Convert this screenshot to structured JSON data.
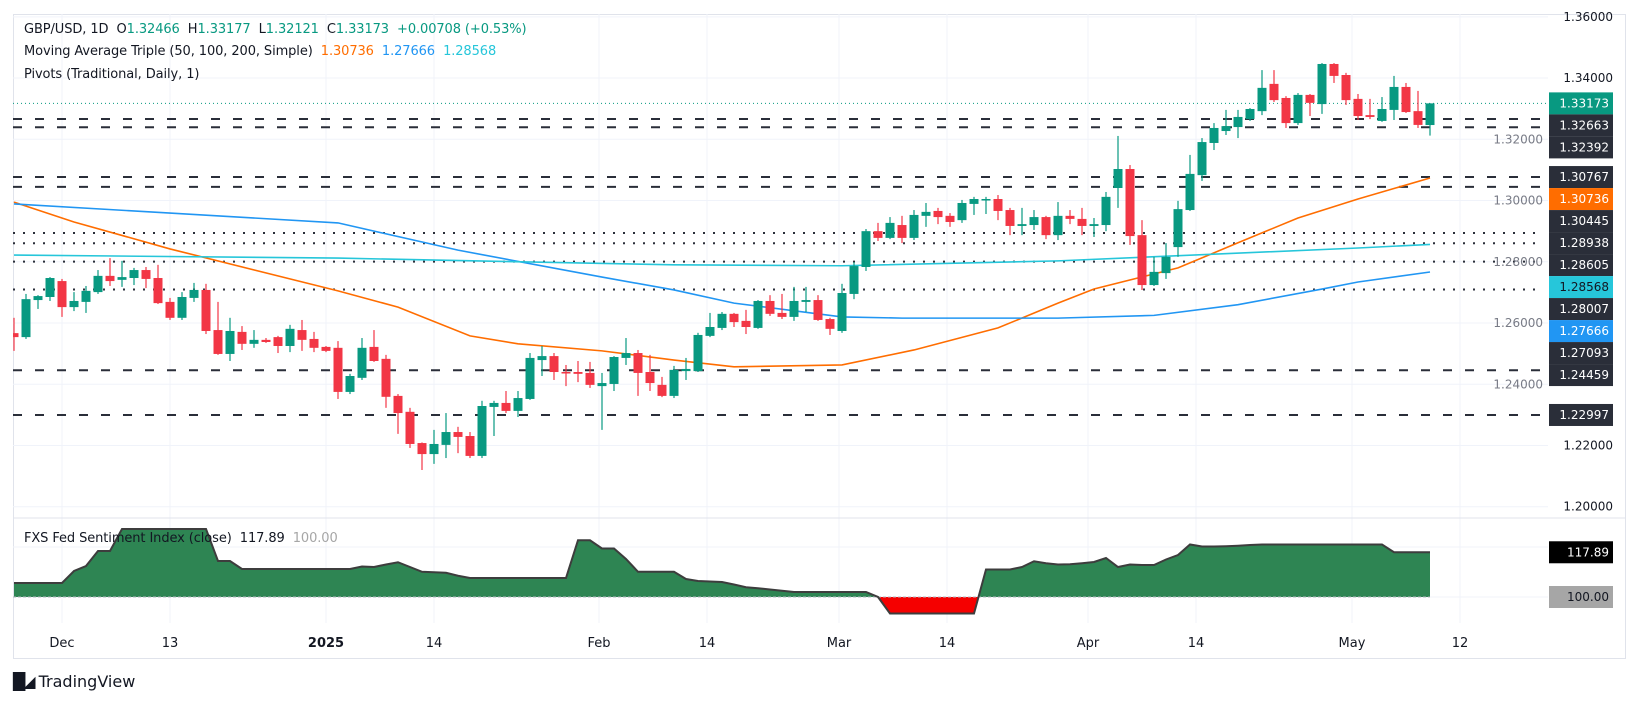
{
  "header": {
    "symbol": "GBP/USD, 1D",
    "o_label": "O",
    "o": "1.32466",
    "h_label": "H",
    "h": "1.33177",
    "l_label": "L",
    "l": "1.32121",
    "c_label": "C",
    "c": "1.33173",
    "change": "+0.00708 (+0.53%)"
  },
  "moving_average": {
    "title": "Moving Average Triple (50, 100, 200, Simple)",
    "ma50": "1.30736",
    "ma100": "1.27666",
    "ma200": "1.28568"
  },
  "pivots": {
    "title": "Pivots (Traditional, Daily, 1)"
  },
  "sentiment": {
    "title": "FXS Fed Sentiment Index (close)",
    "value": "117.89",
    "reference": "100.00"
  },
  "branding": "TradingView",
  "colors": {
    "up": "#089981",
    "down": "#f23645",
    "ma50": "#ff6d00",
    "ma100": "#2196f3",
    "ma200": "#26c6da",
    "pivot": "#2a2e39",
    "sentiment_up": "#2e8553",
    "sentiment_down": "#f50000"
  },
  "chart_data": [
    {
      "type": "candlestick",
      "title": "GBP/USD, 1D",
      "ylim": [
        1.19,
        1.365
      ],
      "grid": true,
      "y_ticks": [
        "1.20000",
        "1.22000",
        "1.24000",
        "1.26000",
        "1.28000",
        "1.30000",
        "1.32000",
        "1.34000",
        "1.36000"
      ],
      "x_ticks": [
        {
          "label": "Dec",
          "bar": 4
        },
        {
          "label": "13",
          "bar": 13
        },
        {
          "label": "2025",
          "bar": 26,
          "bold": true
        },
        {
          "label": "14",
          "bar": 35
        },
        {
          "label": "Feb",
          "bar": 48.75
        },
        {
          "label": "14",
          "bar": 57.75
        },
        {
          "label": "Mar",
          "bar": 68.75
        },
        {
          "label": "14",
          "bar": 77.75
        },
        {
          "label": "Apr",
          "bar": 89.5
        },
        {
          "label": "14",
          "bar": 98.5
        },
        {
          "label": "May",
          "bar": 111.5
        },
        {
          "label": "12",
          "bar": 120.5
        }
      ],
      "ohlc": [
        [
          1.2567,
          1.2617,
          1.2509,
          1.2554
        ],
        [
          1.2554,
          1.2695,
          1.2548,
          1.2678
        ],
        [
          1.2675,
          1.2691,
          1.2646,
          1.2688
        ],
        [
          1.2685,
          1.275,
          1.2672,
          1.2747
        ],
        [
          1.2737,
          1.2744,
          1.262,
          1.2652
        ],
        [
          1.2652,
          1.2701,
          1.2639,
          1.2672
        ],
        [
          1.2669,
          1.2721,
          1.2633,
          1.2705
        ],
        [
          1.2701,
          1.2773,
          1.2695,
          1.2754
        ],
        [
          1.2754,
          1.2812,
          1.2721,
          1.2737
        ],
        [
          1.2741,
          1.2803,
          1.2718,
          1.275
        ],
        [
          1.2747,
          1.278,
          1.2724,
          1.2773
        ],
        [
          1.2773,
          1.2783,
          1.2714,
          1.2744
        ],
        [
          1.2747,
          1.279,
          1.2662,
          1.2665
        ],
        [
          1.2669,
          1.2682,
          1.261,
          1.2617
        ],
        [
          1.2617,
          1.2701,
          1.261,
          1.2685
        ],
        [
          1.2682,
          1.2731,
          1.2669,
          1.2708
        ],
        [
          1.2708,
          1.2728,
          1.2564,
          1.2574
        ],
        [
          1.2577,
          1.2669,
          1.2496,
          1.2499
        ],
        [
          1.2499,
          1.2617,
          1.2476,
          1.2574
        ],
        [
          1.2571,
          1.259,
          1.2512,
          1.2532
        ],
        [
          1.2532,
          1.2577,
          1.2519,
          1.2545
        ],
        [
          1.2545,
          1.2551,
          1.2535,
          1.2538
        ],
        [
          1.2554,
          1.2558,
          1.2502,
          1.2525
        ],
        [
          1.2525,
          1.2594,
          1.2505,
          1.2581
        ],
        [
          1.2577,
          1.261,
          1.2509,
          1.2545
        ],
        [
          1.2548,
          1.2571,
          1.2505,
          1.2519
        ],
        [
          1.2522,
          1.2525,
          1.2505,
          1.2509
        ],
        [
          1.2519,
          1.2541,
          1.2352,
          1.2375
        ],
        [
          1.2375,
          1.2434,
          1.2368,
          1.2427
        ],
        [
          1.2421,
          1.2551,
          1.2414,
          1.2519
        ],
        [
          1.2522,
          1.2577,
          1.2473,
          1.2476
        ],
        [
          1.2483,
          1.2496,
          1.2323,
          1.2359
        ],
        [
          1.2362,
          1.2368,
          1.2238,
          1.2306
        ],
        [
          1.231,
          1.2323,
          1.2192,
          1.2205
        ],
        [
          1.2208,
          1.221,
          1.212,
          1.2172
        ],
        [
          1.2172,
          1.2251,
          1.214,
          1.2205
        ],
        [
          1.2202,
          1.2306,
          1.2159,
          1.2244
        ],
        [
          1.2244,
          1.2261,
          1.2175,
          1.2228
        ],
        [
          1.2231,
          1.2244,
          1.2159,
          1.2166
        ],
        [
          1.2166,
          1.2346,
          1.2159,
          1.2329
        ],
        [
          1.2326,
          1.2346,
          1.2231,
          1.2339
        ],
        [
          1.2339,
          1.2378,
          1.2306,
          1.2313
        ],
        [
          1.2313,
          1.2378,
          1.2293,
          1.2355
        ],
        [
          1.2352,
          1.2502,
          1.2349,
          1.2486
        ],
        [
          1.2479,
          1.2525,
          1.2427,
          1.2492
        ],
        [
          1.2492,
          1.2502,
          1.2414,
          1.244
        ],
        [
          1.244,
          1.2463,
          1.2394,
          1.2437
        ],
        [
          1.244,
          1.2476,
          1.2407,
          1.2434
        ],
        [
          1.2437,
          1.2473,
          1.2388,
          1.2398
        ],
        [
          1.2394,
          1.2437,
          1.2251,
          1.2404
        ],
        [
          1.2401,
          1.2492,
          1.2378,
          1.2489
        ],
        [
          1.2486,
          1.2551,
          1.2463,
          1.2502
        ],
        [
          1.2502,
          1.2512,
          1.2362,
          1.2437
        ],
        [
          1.244,
          1.2496,
          1.2378,
          1.2404
        ],
        [
          1.2398,
          1.2424,
          1.2358,
          1.2362
        ],
        [
          1.2362,
          1.246,
          1.2355,
          1.2447
        ],
        [
          1.2443,
          1.2486,
          1.2414,
          1.245
        ],
        [
          1.2443,
          1.2568,
          1.244,
          1.2561
        ],
        [
          1.2558,
          1.2633,
          1.2554,
          1.2587
        ],
        [
          1.2584,
          1.2636,
          1.2577,
          1.263
        ],
        [
          1.263,
          1.2633,
          1.2587,
          1.2603
        ],
        [
          1.2607,
          1.2643,
          1.2564,
          1.2587
        ],
        [
          1.2584,
          1.2675,
          1.2581,
          1.2672
        ],
        [
          1.2672,
          1.2691,
          1.2623,
          1.263
        ],
        [
          1.2633,
          1.2695,
          1.2613,
          1.262
        ],
        [
          1.262,
          1.2718,
          1.2607,
          1.2672
        ],
        [
          1.2669,
          1.2718,
          1.2636,
          1.2675
        ],
        [
          1.2675,
          1.2691,
          1.2607,
          1.261
        ],
        [
          1.2613,
          1.2617,
          1.2561,
          1.2581
        ],
        [
          1.2574,
          1.2728,
          1.2568,
          1.2698
        ],
        [
          1.2695,
          1.2799,
          1.2678,
          1.2786
        ],
        [
          1.2783,
          1.2907,
          1.277,
          1.29
        ],
        [
          1.29,
          1.2927,
          1.2868,
          1.2878
        ],
        [
          1.2878,
          1.2946,
          1.2874,
          1.2927
        ],
        [
          1.292,
          1.295,
          1.2861,
          1.2878
        ],
        [
          1.2878,
          1.2969,
          1.2871,
          1.2953
        ],
        [
          1.295,
          1.2992,
          1.2914,
          1.2963
        ],
        [
          1.2966,
          1.2976,
          1.2923,
          1.2946
        ],
        [
          1.295,
          1.2959,
          1.2914,
          1.293
        ],
        [
          1.2936,
          1.3002,
          1.2927,
          1.2992
        ],
        [
          1.2989,
          1.3012,
          1.2953,
          1.3005
        ],
        [
          1.3002,
          1.3012,
          1.2956,
          1.3005
        ],
        [
          1.3005,
          1.3018,
          1.2936,
          1.2966
        ],
        [
          1.2969,
          1.2976,
          1.2887,
          1.2917
        ],
        [
          1.2917,
          1.2976,
          1.2887,
          1.2923
        ],
        [
          1.292,
          1.2969,
          1.2904,
          1.2946
        ],
        [
          1.2946,
          1.295,
          1.2874,
          1.2887
        ],
        [
          1.2887,
          1.2995,
          1.2871,
          1.295
        ],
        [
          1.295,
          1.2969,
          1.2923,
          1.294
        ],
        [
          1.294,
          1.2976,
          1.2887,
          1.2917
        ],
        [
          1.2917,
          1.2943,
          1.2881,
          1.2923
        ],
        [
          1.292,
          1.3028,
          1.29,
          1.3012
        ],
        [
          1.3041,
          1.3211,
          1.2976,
          1.3103
        ],
        [
          1.3103,
          1.3116,
          1.2855,
          1.2884
        ],
        [
          1.2887,
          1.2936,
          1.2708,
          1.2724
        ],
        [
          1.2724,
          1.2816,
          1.2721,
          1.2767
        ],
        [
          1.2763,
          1.2861,
          1.2744,
          1.2816
        ],
        [
          1.2848,
          1.2999,
          1.2816,
          1.2972
        ],
        [
          1.2969,
          1.3149,
          1.2966,
          1.3087
        ],
        [
          1.3083,
          1.3204,
          1.3064,
          1.3191
        ],
        [
          1.3188,
          1.3253,
          1.3165,
          1.3237
        ],
        [
          1.3227,
          1.3296,
          1.3214,
          1.3243
        ],
        [
          1.324,
          1.3296,
          1.3204,
          1.3273
        ],
        [
          1.3266,
          1.3302,
          1.326,
          1.3299
        ],
        [
          1.3292,
          1.3426,
          1.3279,
          1.3368
        ],
        [
          1.3381,
          1.3426,
          1.3322,
          1.3328
        ],
        [
          1.3335,
          1.3341,
          1.3237,
          1.3253
        ],
        [
          1.3253,
          1.3351,
          1.3247,
          1.3345
        ],
        [
          1.3345,
          1.3348,
          1.3276,
          1.3319
        ],
        [
          1.3315,
          1.3449,
          1.3283,
          1.3446
        ],
        [
          1.3446,
          1.3449,
          1.3384,
          1.3407
        ],
        [
          1.341,
          1.3417,
          1.3312,
          1.3328
        ],
        [
          1.3332,
          1.3348,
          1.3263,
          1.3276
        ],
        [
          1.3279,
          1.3332,
          1.3266,
          1.3273
        ],
        [
          1.326,
          1.3338,
          1.3257,
          1.3299
        ],
        [
          1.3296,
          1.3407,
          1.3263,
          1.3371
        ],
        [
          1.3371,
          1.3384,
          1.3286,
          1.3289
        ],
        [
          1.3292,
          1.3358,
          1.3237,
          1.3247
        ],
        [
          1.32466,
          1.33177,
          1.32121,
          1.33173
        ]
      ],
      "moving_averages": [
        {
          "name": "MA 50",
          "label": "1.30736",
          "value": 1.30736,
          "points": [
            [
              0,
              1.2995
            ],
            [
              5,
              1.293
            ],
            [
              13,
              1.2842
            ],
            [
              27,
              1.2705
            ],
            [
              32,
              1.2652
            ],
            [
              38,
              1.2558
            ],
            [
              42,
              1.2532
            ],
            [
              49,
              1.2509
            ],
            [
              55,
              1.2479
            ],
            [
              60,
              1.2457
            ],
            [
              69,
              1.2463
            ],
            [
              75,
              1.2512
            ],
            [
              82,
              1.2584
            ],
            [
              87,
              1.2665
            ],
            [
              90,
              1.2711
            ],
            [
              97,
              1.278
            ],
            [
              102,
              1.2862
            ],
            [
              107,
              1.2943
            ],
            [
              112,
              1.3005
            ],
            [
              118,
              1.30736
            ]
          ]
        },
        {
          "name": "MA 100",
          "label": "1.27666",
          "value": 1.27666,
          "points": [
            [
              0,
              1.2989
            ],
            [
              13,
              1.2959
            ],
            [
              27,
              1.2927
            ],
            [
              37,
              1.2838
            ],
            [
              49,
              1.275
            ],
            [
              55,
              1.2708
            ],
            [
              60,
              1.2665
            ],
            [
              69,
              1.262
            ],
            [
              74,
              1.2616
            ],
            [
              87,
              1.2616
            ],
            [
              95,
              1.2625
            ],
            [
              102,
              1.266
            ],
            [
              109,
              1.2711
            ],
            [
              112,
              1.2734
            ],
            [
              118,
              1.27666
            ]
          ]
        },
        {
          "name": "MA 200",
          "label": "1.28568",
          "value": 1.28568,
          "points": [
            [
              0,
              1.2822
            ],
            [
              27,
              1.2812
            ],
            [
              55,
              1.279
            ],
            [
              69,
              1.2787
            ],
            [
              87,
              1.2803
            ],
            [
              112,
              1.2845
            ],
            [
              118,
              1.28568
            ]
          ]
        }
      ],
      "pivot_levels": [
        {
          "value": 1.32663,
          "label": "1.32663",
          "style": "dashed"
        },
        {
          "value": 1.32392,
          "label": "1.32392",
          "style": "dashed"
        },
        {
          "value": 1.30767,
          "label": "1.30767",
          "style": "dashed"
        },
        {
          "value": 1.30445,
          "label": "1.30445",
          "style": "dashed"
        },
        {
          "value": 1.28938,
          "label": "1.28938",
          "style": "dotted"
        },
        {
          "value": 1.28605,
          "label": "1.28605",
          "style": "dotted"
        },
        {
          "value": 1.28007,
          "label": "1.28007",
          "style": "dotted"
        },
        {
          "value": 1.27093,
          "label": "1.27093",
          "style": "dotted"
        },
        {
          "value": 1.24459,
          "label": "1.24459",
          "style": "dashed"
        },
        {
          "value": 1.22997,
          "label": "1.22997",
          "style": "dashed"
        }
      ],
      "last_price": {
        "value": 1.33173,
        "label": "1.33173"
      }
    },
    {
      "type": "area",
      "title": "FXS Fed Sentiment Index (close)",
      "baseline": 100,
      "ylim": [
        88,
        130
      ],
      "grid": true,
      "values": [
        105.6,
        105.6,
        105.6,
        105.6,
        105.6,
        110.4,
        112.4,
        118.4,
        118.4,
        127.2,
        127.2,
        127.2,
        127.2,
        127.2,
        127.2,
        127.2,
        127.2,
        114.4,
        114.4,
        111.2,
        111.2,
        111.2,
        111.2,
        111.2,
        111.2,
        111.2,
        111.2,
        111.2,
        111.2,
        112.2,
        112.0,
        113.0,
        113.9,
        112.0,
        110.1,
        109.9,
        109.7,
        108.5,
        107.6,
        107.6,
        107.6,
        107.6,
        107.6,
        107.6,
        107.6,
        107.6,
        107.6,
        122.7,
        122.7,
        119.4,
        119.4,
        115.2,
        110.1,
        110.1,
        110.1,
        110.1,
        107.2,
        106.4,
        106.2,
        106.0,
        105.0,
        103.9,
        103.5,
        103.0,
        102.5,
        102.0,
        102.0,
        102.0,
        102.0,
        102.0,
        102.0,
        102.0,
        100.0,
        93.4,
        93.4,
        93.4,
        93.4,
        93.4,
        93.4,
        93.4,
        93.4,
        111.0,
        111.0,
        111.0,
        112.0,
        114.3,
        113.5,
        113.0,
        113.1,
        113.5,
        114.0,
        115.6,
        112.0,
        113.0,
        112.8,
        112.8,
        115.0,
        116.8,
        121.0,
        120.2,
        120.2,
        120.3,
        120.5,
        120.8,
        121.0,
        121.0,
        121.0,
        121.0,
        121.0,
        121.0,
        121.0,
        121.0,
        121.0,
        121.0,
        121.0,
        117.89,
        117.89,
        117.89,
        117.89
      ],
      "last_label": "117.89",
      "baseline_label": "100.00"
    }
  ]
}
